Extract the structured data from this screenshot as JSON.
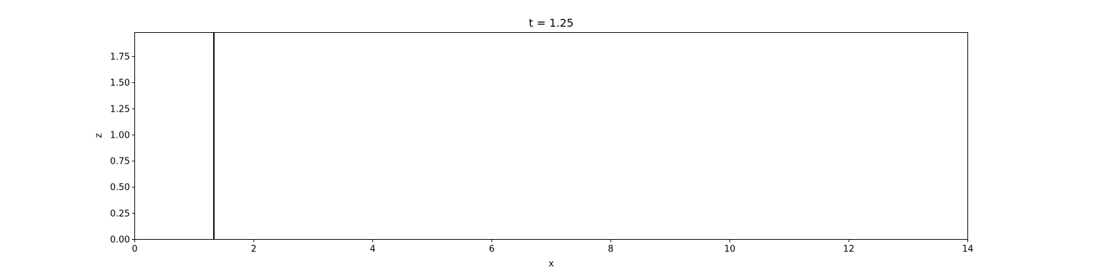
{
  "chart_data": {
    "type": "line",
    "title": "t = 1.25",
    "xlabel": "x",
    "ylabel": "z",
    "xlim": [
      0,
      14
    ],
    "ylim": [
      0,
      1.98
    ],
    "x_ticks": [
      0,
      2,
      4,
      6,
      8,
      10,
      12,
      14
    ],
    "x_tick_labels": [
      "0",
      "2",
      "4",
      "6",
      "8",
      "10",
      "12",
      "14"
    ],
    "y_ticks": [
      0,
      0.25,
      0.5,
      0.75,
      1.0,
      1.25,
      1.5,
      1.75
    ],
    "y_tick_labels": [
      "0.00",
      "0.25",
      "0.50",
      "0.75",
      "1.00",
      "1.25",
      "1.50",
      "1.75"
    ],
    "grid": false,
    "legend": "none",
    "series": [
      {
        "color": "#000000",
        "x": [
          1.33,
          1.33
        ],
        "y": [
          0,
          1.98
        ]
      }
    ]
  }
}
